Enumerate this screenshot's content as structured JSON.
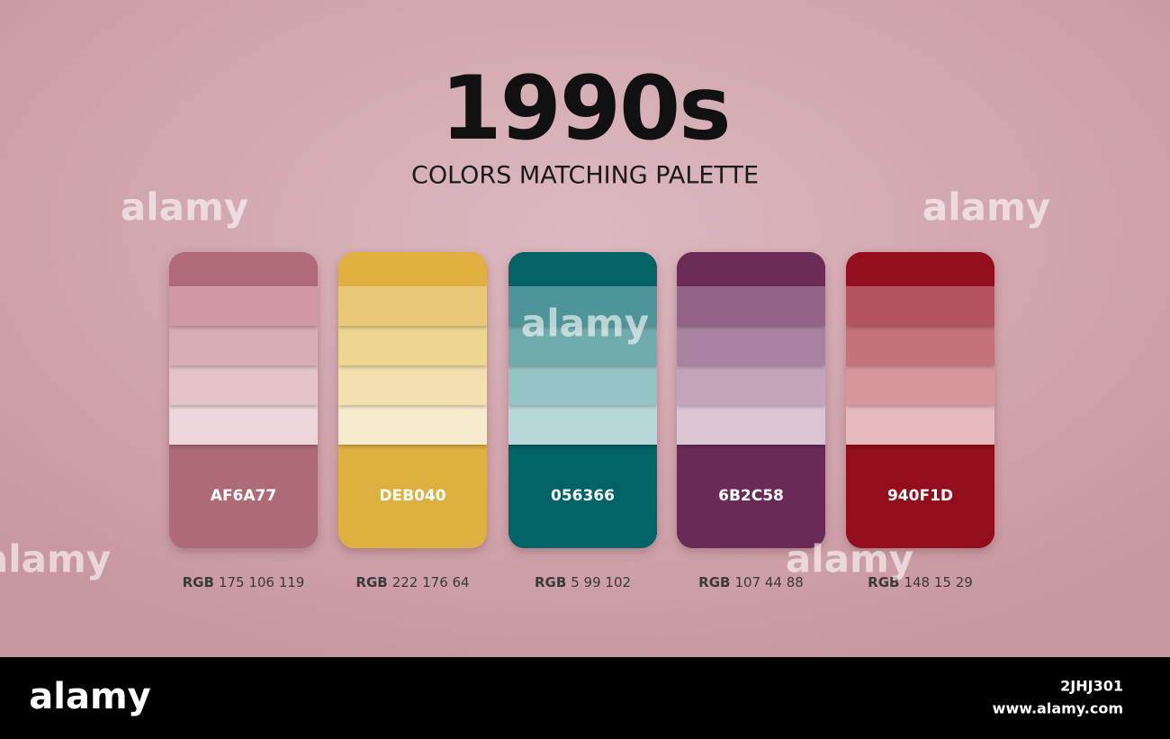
{
  "header": {
    "title": "1990s",
    "subtitle": "COLORS MATCHING PALETTE"
  },
  "cards": [
    {
      "hex": "AF6A77",
      "rgb_label": "RGB",
      "rgb": "175 106 119",
      "color": "#af6a77",
      "shades": [
        "#b06a78",
        "#cf98a2",
        "#d8adb4",
        "#e3c3c8",
        "#ecd6d9"
      ]
    },
    {
      "hex": "DEB040",
      "rgb_label": "RGB",
      "rgb": "222 176 64",
      "color": "#deb040",
      "shades": [
        "#e2b040",
        "#e9c878",
        "#eed590",
        "#f3e0ae",
        "#f7ebcd"
      ]
    },
    {
      "hex": "056366",
      "rgb_label": "RGB",
      "rgb": "5 99 102",
      "color": "#056366",
      "shades": [
        "#056366",
        "#4e9598",
        "#6fabad",
        "#95c2c4",
        "#b9d8d9"
      ]
    },
    {
      "hex": "6B2C58",
      "rgb_label": "RGB",
      "rgb": "107 44 88",
      "color": "#6b2c58",
      "shades": [
        "#6b2c58",
        "#946588",
        "#a883a1",
        "#c4a4bb",
        "#dac6d3"
      ]
    },
    {
      "hex": "940F1D",
      "rgb_label": "RGB",
      "rgb": "148 15 29",
      "color": "#940f1d",
      "shades": [
        "#940f1d",
        "#b5525e",
        "#c5727a",
        "#d7979c",
        "#e6b9bc"
      ]
    }
  ],
  "watermark": "alamy",
  "footer": {
    "brand": "alamy",
    "image_id": "2JHJ301",
    "url": "www.alamy.com"
  }
}
